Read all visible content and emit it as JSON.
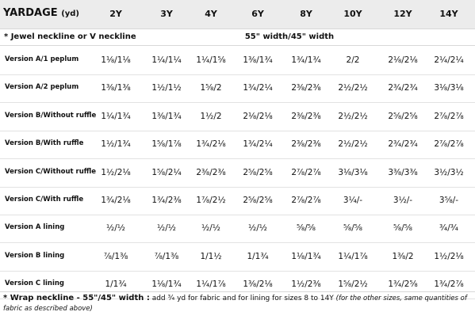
{
  "header": {
    "title": "YARDAGE",
    "unit": "(yd)",
    "sizes": [
      "2Y",
      "3Y",
      "4Y",
      "6Y",
      "8Y",
      "10Y",
      "12Y",
      "14Y"
    ]
  },
  "subheader": {
    "left": "* Jewel neckline or V neckline",
    "width_note": "55\" width/45\" width"
  },
  "rows": [
    {
      "label": "Version A/1 peplum",
      "values": [
        "1⅛/1⅛",
        "1¼/1¼",
        "1¼/1⅝",
        "1⅜/1¾",
        "1¾/1¾",
        "2/2",
        "2⅛/2⅛",
        "2¼/2¼"
      ]
    },
    {
      "label": "Version A/2 peplum",
      "values": [
        "1⅜/1⅜",
        "1½/1½",
        "1⅝/2",
        "1¾/2¼",
        "2⅜/2⅜",
        "2½/2½",
        "2¾/2¾",
        "3⅛/3⅛"
      ]
    },
    {
      "label": "Version B/Without ruffle",
      "values": [
        "1¼/1¾",
        "1⅜/1¾",
        "1½/2",
        "2⅛/2⅛",
        "2⅜/2⅜",
        "2½/2½",
        "2⅝/2⅝",
        "2⅞/2⅞"
      ]
    },
    {
      "label": "Version B/With ruffle",
      "values": [
        "1½/1¾",
        "1⅝/1⅞",
        "1¾/2⅛",
        "1¾/2¼",
        "2⅜/2⅜",
        "2½/2½",
        "2¾/2¾",
        "2⅞/2⅞"
      ]
    },
    {
      "label": "Version C/Without ruffle",
      "values": [
        "1½/2⅛",
        "1⅝/2¼",
        "2⅜/2⅜",
        "2⅝/2⅝",
        "2⅞/2⅞",
        "3⅛/3⅛",
        "3⅜/3⅜",
        "3½/3½"
      ]
    },
    {
      "label": "Version C/With ruffle",
      "values": [
        "1¾/2⅛",
        "1¾/2⅜",
        "1⅞/2½",
        "2⅝/2⅝",
        "2⅞/2⅞",
        "3¼/-",
        "3½/-",
        "3⅝/-"
      ]
    },
    {
      "label": "Version  A lining",
      "values": [
        "½/½",
        "½/½",
        "½/½",
        "½/½",
        "⅝/⅝",
        "⅝/⅝",
        "⅝/⅝",
        "¾/¾"
      ]
    },
    {
      "label": "Version  B lining",
      "values": [
        "⅞/1⅜",
        "⅞/1⅜",
        "1/1½",
        "1/1¾",
        "1⅛/1¾",
        "1¼/1⅞",
        "1⅜/2",
        "1½/2⅛"
      ]
    },
    {
      "label": "Version  C lining",
      "values": [
        "1/1¾",
        "1⅛/1¾",
        "1¼/1⅞",
        "1⅜/2⅛",
        "1½/2⅜",
        "1⅝/2½",
        "1¾/2⅝",
        "1¾/2⅞"
      ]
    }
  ],
  "footer": {
    "bold": "* Wrap neckline - 55\"/45\" width :",
    "normal": " add ¾ yd for fabric and for lining for sizes 8 to 14Y ",
    "italic": "(for the other sizes, same quantities of fabric as described above)"
  }
}
